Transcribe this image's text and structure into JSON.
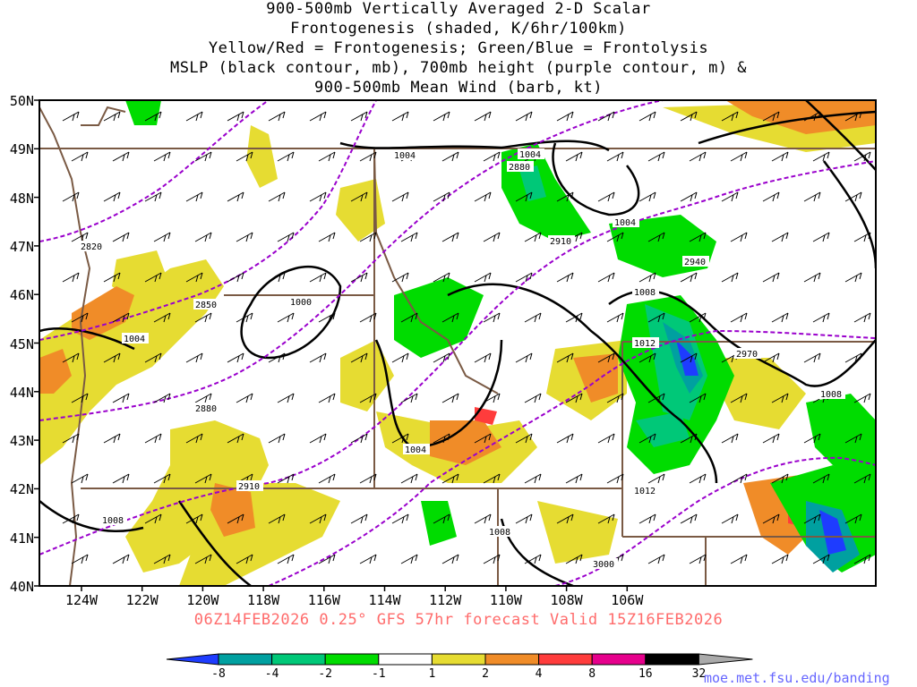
{
  "titles": [
    "900-500mb Vertically Averaged 2-D Scalar",
    "Frontogenesis (shaded, K/6hr/100km)",
    "Yellow/Red = Frontogenesis;  Green/Blue = Frontolysis",
    "MSLP (black contour, mb), 700mb height (purple contour, m) &",
    "900-500mb Mean Wind (barb, kt)"
  ],
  "lat_labels": [
    "50N",
    "49N",
    "48N",
    "47N",
    "46N",
    "45N",
    "44N",
    "43N",
    "42N",
    "41N",
    "40N"
  ],
  "lon_labels": [
    "124W",
    "122W",
    "120W",
    "118W",
    "116W",
    "114W",
    "112W",
    "110W",
    "108W",
    "106W"
  ],
  "footer": "06Z14FEB2026 0.25° GFS 57hr forecast Valid 15Z16FEB2026",
  "colorbar": {
    "labels": [
      "-8",
      "-4",
      "-2",
      "-1",
      "1",
      "2",
      "4",
      "8",
      "16",
      "32"
    ],
    "colors": [
      "#1e3cff",
      "#00a0a0",
      "#00c878",
      "#00dc00",
      "#ffffff",
      "#e6dc32",
      "#f08c28",
      "#ff3c3c",
      "#e6008c",
      "#000000",
      "#aaaaaa"
    ]
  },
  "credit": "moe.met.fsu.edu/banding",
  "mslp_labels": [
    "1004",
    "1004",
    "1000",
    "1004",
    "1008",
    "1012",
    "1012",
    "1008",
    "1004",
    "1008",
    "1008",
    "1004"
  ],
  "height_labels": [
    "2820",
    "2850",
    "2880",
    "2910",
    "2910",
    "2940",
    "2970",
    "2880",
    "3000"
  ],
  "colors": {
    "mslp": "#000000",
    "height": "#9a00cc",
    "borders": "#7a5a44",
    "footer": "#ff6b6b"
  }
}
